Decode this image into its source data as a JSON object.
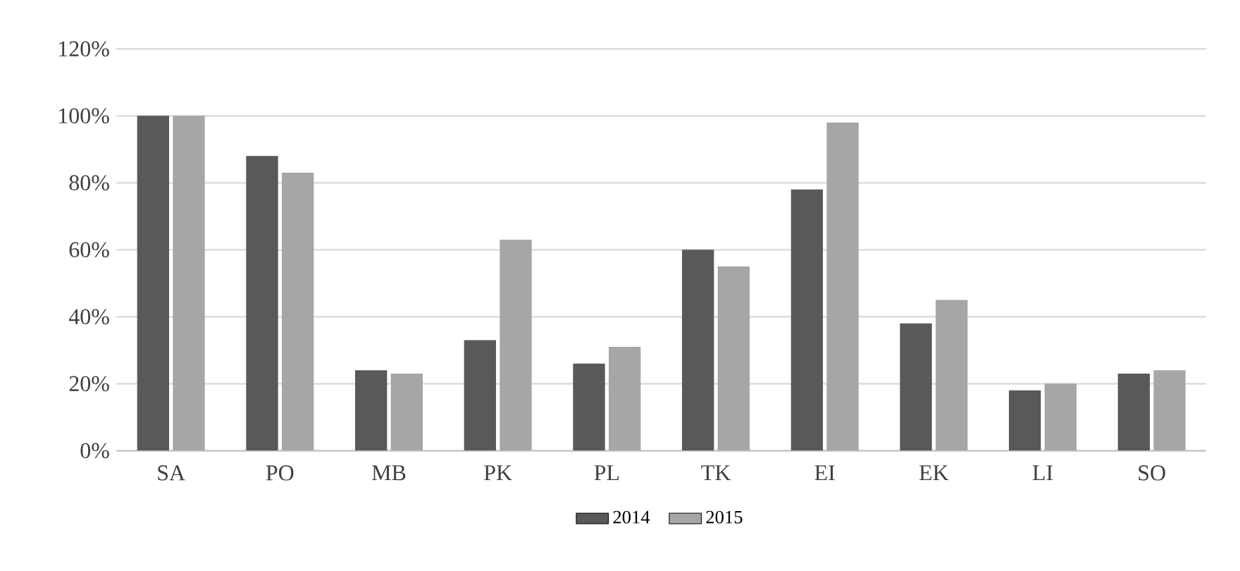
{
  "chart_data": {
    "type": "bar",
    "categories": [
      "SA",
      "PO",
      "MB",
      "PK",
      "PL",
      "TK",
      "EI",
      "EK",
      "LI",
      "SO"
    ],
    "series": [
      {
        "name": "2014",
        "color": "#595959",
        "values": [
          100,
          88,
          24,
          33,
          26,
          60,
          78,
          38,
          18,
          23
        ]
      },
      {
        "name": "2015",
        "color": "#a6a6a6",
        "values": [
          100,
          83,
          23,
          63,
          31,
          55,
          98,
          45,
          20,
          24
        ]
      }
    ],
    "ylim": [
      0,
      120
    ],
    "yticks": [
      {
        "value": 0,
        "label": "0%"
      },
      {
        "value": 20,
        "label": "20%"
      },
      {
        "value": 40,
        "label": "40%"
      },
      {
        "value": 60,
        "label": "60%"
      },
      {
        "value": 80,
        "label": "80%"
      },
      {
        "value": 100,
        "label": "100%"
      },
      {
        "value": 120,
        "label": "120%"
      }
    ],
    "grid": "y",
    "legend": "bottom"
  }
}
